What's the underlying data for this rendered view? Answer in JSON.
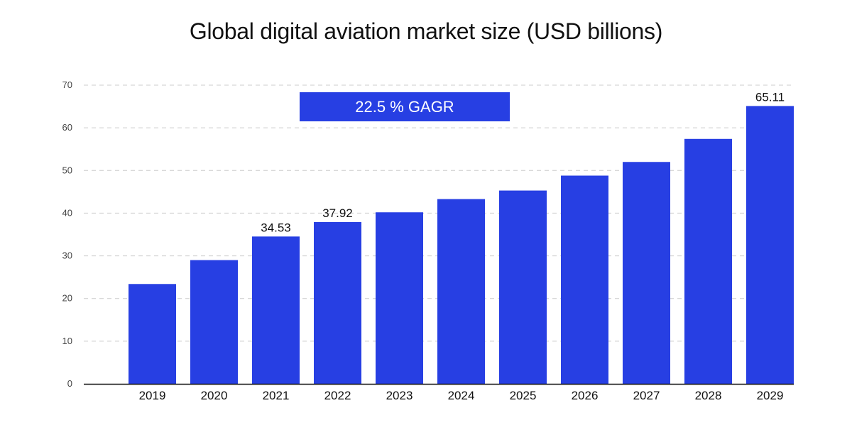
{
  "chart_data": {
    "type": "bar",
    "title": "Global digital aviation market size (USD billions)",
    "xlabel": "",
    "ylabel": "",
    "categories": [
      "2019",
      "2020",
      "2021",
      "2022",
      "2023",
      "2024",
      "2025",
      "2026",
      "2027",
      "2028",
      "2029"
    ],
    "values": [
      23.4,
      29.0,
      34.53,
      37.92,
      40.2,
      43.3,
      45.3,
      48.8,
      52.0,
      57.4,
      65.11
    ],
    "data_labels": [
      {
        "category": "2021",
        "label": "34.53"
      },
      {
        "category": "2022",
        "label": "37.92"
      },
      {
        "category": "2029",
        "label": "65.11"
      }
    ],
    "ylim": [
      0,
      70
    ],
    "yticks": [
      "0",
      "10",
      "20",
      "30",
      "40",
      "50",
      "60",
      "70"
    ],
    "grid": true,
    "annotation": "22.5 % GAGR",
    "colors": {
      "bar": "#273fe3",
      "banner": "#273fe3",
      "grid": "#cccccc",
      "axis": "#111111",
      "tick_text": "#444444",
      "label_text": "#111111"
    }
  }
}
